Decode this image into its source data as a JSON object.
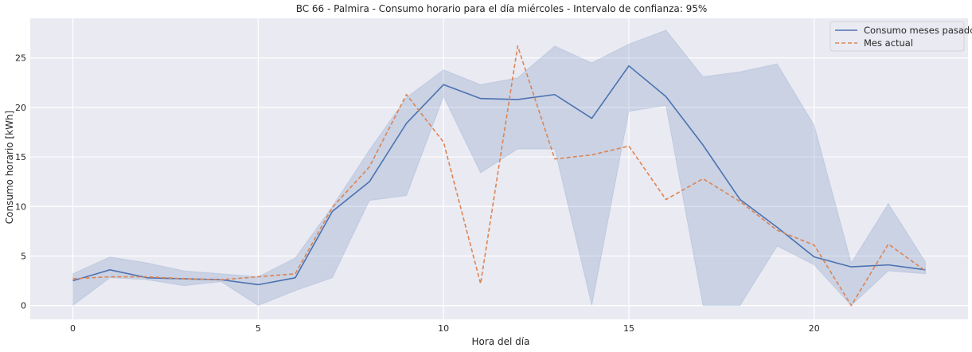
{
  "chart_data": {
    "type": "line",
    "title": "BC 66 - Palmira - Consumo horario para el día miércoles - Intervalo de confianza: 95%",
    "xlabel": "Hora del día",
    "ylabel": "Consumo horario [kWh]",
    "xlim": [
      -1.15,
      24.15
    ],
    "ylim": [
      -1.4,
      29.0
    ],
    "xticks": [
      0,
      5,
      10,
      15,
      20
    ],
    "yticks": [
      0,
      5,
      10,
      15,
      20,
      25
    ],
    "grid": true,
    "legend_position": "top-right",
    "x": [
      0,
      1,
      2,
      3,
      4,
      5,
      6,
      7,
      8,
      9,
      10,
      11,
      12,
      13,
      14,
      15,
      16,
      17,
      18,
      19,
      20,
      21,
      22,
      23
    ],
    "series": [
      {
        "name": "Consumo meses pasados",
        "style": "solid",
        "color": "#4c72b0",
        "values": [
          2.5,
          3.6,
          2.8,
          2.7,
          2.6,
          2.1,
          2.8,
          9.5,
          12.5,
          18.4,
          22.3,
          20.9,
          20.8,
          21.3,
          18.9,
          24.2,
          21.1,
          16.2,
          10.7,
          7.9,
          4.9,
          3.9,
          4.1,
          3.6
        ],
        "ci_lower": [
          0.0,
          2.8,
          2.6,
          2.0,
          2.4,
          0.0,
          1.5,
          2.8,
          10.6,
          11.1,
          21.1,
          13.4,
          15.8,
          15.8,
          0.0,
          19.6,
          20.2,
          0.0,
          0.0,
          6.0,
          4.1,
          0.0,
          3.5,
          3.2
        ],
        "ci_upper": [
          3.2,
          4.9,
          4.3,
          3.5,
          3.2,
          2.9,
          4.8,
          10.0,
          15.7,
          21.0,
          23.8,
          22.3,
          23.0,
          26.2,
          24.5,
          26.4,
          27.8,
          23.1,
          23.6,
          24.4,
          18.2,
          4.3,
          10.3,
          4.4
        ]
      },
      {
        "name": "Mes actual",
        "style": "dashed",
        "color": "#dd8452",
        "values": [
          2.7,
          2.9,
          2.9,
          2.7,
          2.6,
          2.9,
          3.2,
          9.9,
          14.0,
          21.3,
          16.5,
          2.2,
          26.2,
          14.8,
          15.2,
          16.1,
          10.7,
          12.8,
          10.5,
          7.6,
          6.1,
          0.0,
          6.2,
          3.5
        ]
      }
    ],
    "ci_color": "#4c72b0"
  }
}
